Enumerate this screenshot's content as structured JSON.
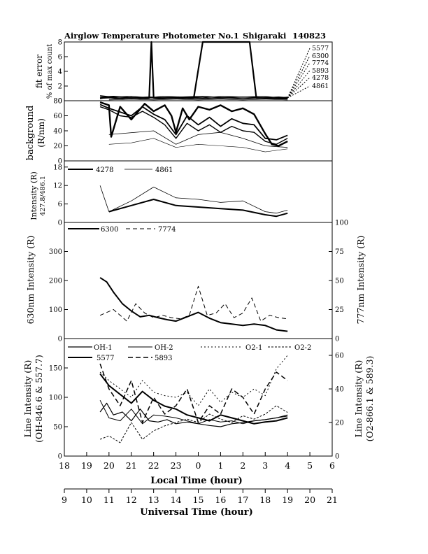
{
  "title": {
    "left": "Airglow Temperature Photometer No.1",
    "site": "Shigaraki",
    "date": "140823"
  },
  "x_axes": {
    "local": {
      "label": "Local Time (hour)",
      "ticks": [
        "18",
        "19",
        "20",
        "21",
        "22",
        "23",
        "0",
        "1",
        "2",
        "3",
        "4",
        "5",
        "6"
      ]
    },
    "universal": {
      "label": "Universal Time (hour)",
      "ticks": [
        "9",
        "10",
        "11",
        "12",
        "13",
        "14",
        "15",
        "16",
        "17",
        "18",
        "19",
        "20",
        "21"
      ]
    }
  },
  "chart_data": [
    {
      "type": "line",
      "panel": "fit_error",
      "ylabel": "fit error",
      "ylabel2": "% of max count",
      "ylim": [
        0,
        8
      ],
      "yticks": [
        "0",
        "2",
        "4",
        "6",
        "8"
      ],
      "legend": [
        "5577",
        "6300",
        "7774",
        "5893",
        "4278",
        "4861"
      ],
      "series": [
        {
          "name": "5577",
          "x": [
            19.6,
            19.9,
            20.2,
            20.6,
            21.0,
            21.4,
            21.8,
            21.9,
            22.0,
            22.4,
            22.9,
            23.3,
            23.8,
            24.2,
            24.5,
            24.8,
            25.1,
            25.4,
            25.8,
            26.3,
            26.6,
            27.0,
            27.5,
            27.9,
            28.0
          ],
          "y": [
            0.3,
            0.5,
            0.4,
            0.3,
            0.4,
            0.3,
            0.4,
            8.0,
            0.4,
            0.3,
            0.4,
            0.3,
            0.4,
            8.0,
            8.0,
            8.0,
            8.0,
            8.0,
            8.0,
            8.0,
            0.4,
            0.3,
            0.3,
            0.3,
            0.3
          ]
        },
        {
          "name": "6300",
          "x": [
            19.6,
            20.2,
            21.0,
            21.8,
            22.4,
            23.3,
            24.2,
            25.1,
            26.0,
            26.9,
            27.6,
            28.0
          ],
          "y": [
            0.5,
            0.6,
            0.4,
            0.5,
            0.4,
            0.5,
            0.6,
            0.4,
            0.5,
            0.4,
            0.5,
            0.4
          ]
        },
        {
          "name": "7774",
          "x": [
            19.6,
            20.2,
            21.0,
            21.8,
            22.4,
            23.3,
            24.2,
            25.1,
            26.0,
            26.9,
            27.6,
            28.0
          ],
          "y": [
            0.7,
            0.5,
            0.6,
            0.4,
            0.6,
            0.5,
            0.4,
            0.6,
            0.5,
            0.6,
            0.4,
            0.5
          ]
        },
        {
          "name": "5893",
          "x": [
            19.6,
            20.2,
            21.0,
            21.8,
            22.4,
            23.3,
            24.2,
            25.1,
            26.0,
            26.9,
            27.6,
            28.0
          ],
          "y": [
            0.3,
            0.4,
            0.3,
            0.4,
            0.3,
            0.4,
            0.3,
            0.4,
            0.3,
            0.4,
            0.3,
            0.3
          ]
        },
        {
          "name": "4278",
          "x": [
            20.0,
            21.0,
            22.0,
            23.0,
            24.0,
            25.0,
            26.0,
            27.0,
            28.0
          ],
          "y": [
            0.2,
            0.3,
            0.2,
            0.3,
            0.2,
            0.3,
            0.2,
            0.3,
            0.2
          ]
        },
        {
          "name": "4861",
          "x": [
            20.0,
            21.0,
            22.0,
            23.0,
            24.0,
            25.0,
            26.0,
            27.0,
            28.0
          ],
          "y": [
            0.1,
            0.2,
            0.1,
            0.2,
            0.1,
            0.2,
            0.1,
            0.2,
            0.1
          ]
        }
      ]
    },
    {
      "type": "line",
      "panel": "background",
      "ylabel": "background",
      "ylabel2": "(R/nm)",
      "ylim": [
        0,
        80
      ],
      "yticks": [
        "0",
        "20",
        "40",
        "60",
        "80"
      ],
      "series": [
        {
          "x": [
            19.6,
            20.0,
            20.1,
            20.5,
            21.0,
            21.6,
            22.0,
            22.5,
            22.8,
            23.0,
            23.3,
            23.6,
            24.0,
            24.5,
            25.0,
            25.5,
            26.0,
            26.5,
            27.0,
            27.3,
            27.6,
            28.0
          ],
          "y": [
            78,
            74,
            32,
            72,
            55,
            76,
            66,
            74,
            60,
            38,
            70,
            55,
            72,
            68,
            74,
            66,
            70,
            62,
            36,
            22,
            20,
            26
          ]
        },
        {
          "x": [
            19.6,
            20.0,
            20.5,
            21.0,
            21.5,
            22.0,
            22.5,
            23.0,
            23.5,
            24.0,
            24.5,
            25.0,
            25.5,
            26.0,
            26.5,
            27.0,
            27.5,
            28.0
          ],
          "y": [
            75,
            70,
            65,
            60,
            72,
            62,
            55,
            35,
            60,
            48,
            58,
            46,
            56,
            50,
            48,
            30,
            28,
            34
          ]
        },
        {
          "x": [
            19.6,
            20.0,
            20.5,
            21.0,
            21.5,
            22.0,
            22.5,
            23.0,
            23.5,
            24.0,
            24.5,
            25.0,
            25.5,
            26.0,
            26.5,
            27.0,
            27.5,
            28.0
          ],
          "y": [
            72,
            68,
            60,
            58,
            66,
            58,
            48,
            30,
            50,
            40,
            48,
            38,
            46,
            40,
            38,
            26,
            22,
            30
          ]
        },
        {
          "x": [
            20.0,
            22.0,
            23.0,
            24.0,
            25.0,
            26.0,
            27.0,
            28.0
          ],
          "y": [
            35,
            40,
            22,
            35,
            38,
            30,
            20,
            18
          ]
        },
        {
          "x": [
            20.0,
            21.0,
            22.0,
            23.0,
            24.0,
            25.0,
            26.0,
            27.0,
            28.0
          ],
          "y": [
            22,
            24,
            30,
            18,
            22,
            20,
            18,
            12,
            16
          ]
        }
      ]
    },
    {
      "type": "line",
      "panel": "intensity_4278_4861",
      "ylabel": "Intensity (R)",
      "ylabel2": "427.8/486.1",
      "ylim": [
        0,
        20
      ],
      "yticks": [
        "0",
        "6",
        "12",
        "18"
      ],
      "series": [
        {
          "name": "4278",
          "x": [
            20.0,
            21.0,
            22.0,
            23.0,
            24.0,
            25.0,
            26.0,
            27.0,
            27.5,
            28.0
          ],
          "y": [
            3.5,
            5.5,
            7.5,
            5.5,
            5.0,
            4.5,
            4.0,
            2.5,
            2.0,
            3.0
          ]
        },
        {
          "name": "4861",
          "x": [
            19.6,
            20.0,
            21.0,
            22.0,
            23.0,
            24.0,
            25.0,
            26.0,
            27.0,
            27.5,
            28.0
          ],
          "y": [
            12.0,
            3.5,
            7.0,
            11.5,
            8.0,
            7.5,
            6.5,
            7.0,
            3.5,
            3.0,
            4.0
          ]
        }
      ]
    },
    {
      "type": "line",
      "panel": "intensity_6300_7774",
      "ylabel": "630nm Intensity (R)",
      "ylabel2": "777nm Intensity (R)",
      "ylim": [
        0,
        400
      ],
      "y2lim": [
        0,
        100
      ],
      "yticks": [
        "0",
        "100",
        "200",
        "300"
      ],
      "y2ticks": [
        "0",
        "25",
        "50",
        "75",
        "100"
      ],
      "series": [
        {
          "name": "6300",
          "axis": "left",
          "x": [
            19.6,
            19.9,
            20.2,
            20.6,
            21.0,
            21.4,
            21.8,
            22.2,
            22.6,
            23.0,
            23.5,
            24.0,
            24.5,
            25.0,
            25.5,
            26.0,
            26.5,
            27.0,
            27.5,
            28.0
          ],
          "y": [
            210,
            195,
            160,
            120,
            95,
            75,
            80,
            72,
            65,
            60,
            75,
            90,
            70,
            55,
            50,
            45,
            50,
            45,
            30,
            25
          ]
        },
        {
          "name": "7774",
          "axis": "right",
          "x": [
            19.6,
            20.2,
            20.8,
            21.2,
            21.6,
            22.0,
            22.4,
            22.8,
            23.2,
            23.6,
            24.0,
            24.4,
            24.8,
            25.2,
            25.6,
            26.0,
            26.4,
            26.8,
            27.2,
            27.6,
            28.0
          ],
          "y": [
            20,
            25,
            15,
            30,
            22,
            18,
            20,
            18,
            17,
            20,
            45,
            20,
            22,
            30,
            18,
            22,
            35,
            15,
            20,
            18,
            17
          ]
        }
      ]
    },
    {
      "type": "line",
      "panel": "line_intensity",
      "ylabel": "Line Intensity (R)",
      "ylabel2": "(OH-846.6 & 557.7)",
      "y2label": "Line Intensity (R)",
      "y2label2": "(O2-866.1 & 589.3)",
      "ylim": [
        0,
        200
      ],
      "y2lim": [
        0,
        70
      ],
      "yticks": [
        "0",
        "50",
        "100",
        "150"
      ],
      "y2ticks": [
        "0",
        "20",
        "40",
        "60"
      ],
      "legend": [
        "OH-1",
        "OH-2",
        "O2-1",
        "O2-2",
        "5577",
        "5893"
      ],
      "series": [
        {
          "name": "OH-1",
          "x": [
            19.6,
            19.9,
            20.2,
            20.6,
            21.0,
            21.4,
            21.8,
            22.2,
            22.6,
            23.0,
            23.5,
            24.0,
            24.5,
            25.0,
            25.5,
            26.0,
            26.5,
            27.0,
            27.5,
            28.0
          ],
          "y": [
            75,
            90,
            70,
            75,
            60,
            80,
            60,
            58,
            62,
            55,
            58,
            55,
            52,
            50,
            55,
            57,
            60,
            62,
            65,
            70
          ]
        },
        {
          "name": "OH-2",
          "x": [
            19.6,
            20.0,
            20.5,
            21.0,
            21.5,
            22.0,
            22.5,
            23.0,
            23.5,
            24.0,
            24.5,
            25.0,
            25.5,
            26.0,
            26.5,
            27.0,
            27.5,
            28.0
          ],
          "y": [
            95,
            65,
            60,
            80,
            55,
            70,
            68,
            65,
            60,
            55,
            62,
            58,
            60,
            55,
            60,
            62,
            65,
            68
          ]
        },
        {
          "name": "O2-1",
          "axis": "right",
          "x": [
            19.6,
            20.0,
            20.5,
            21.0,
            21.5,
            22.0,
            22.5,
            23.0,
            23.5,
            24.0,
            24.5,
            25.0,
            25.5,
            26.0,
            26.5,
            27.0,
            27.5,
            28.0
          ],
          "y": [
            50,
            45,
            40,
            35,
            45,
            38,
            36,
            35,
            38,
            30,
            40,
            32,
            38,
            35,
            40,
            36,
            52,
            60
          ]
        },
        {
          "name": "O2-2",
          "axis": "right",
          "x": [
            19.6,
            20.0,
            20.5,
            21.0,
            21.5,
            22.0,
            22.5,
            23.0,
            23.5,
            24.0,
            24.5,
            25.0,
            25.5,
            26.0,
            26.5,
            27.0,
            27.5,
            28.0
          ],
          "y": [
            10,
            12,
            8,
            20,
            10,
            15,
            18,
            20,
            22,
            20,
            25,
            22,
            20,
            24,
            22,
            25,
            30,
            26
          ]
        },
        {
          "name": "5577",
          "x": [
            19.6,
            20.0,
            20.5,
            21.0,
            21.5,
            22.0,
            22.5,
            23.0,
            23.5,
            24.0,
            24.5,
            25.0,
            25.5,
            26.0,
            26.5,
            27.0,
            27.5,
            28.0
          ],
          "y": [
            140,
            120,
            105,
            90,
            110,
            95,
            85,
            80,
            70,
            65,
            60,
            70,
            65,
            60,
            55,
            58,
            60,
            65
          ]
        },
        {
          "name": "5893",
          "axis": "right",
          "x": [
            19.6,
            20.0,
            20.5,
            21.0,
            21.5,
            22.0,
            22.5,
            23.0,
            23.5,
            24.0,
            24.5,
            25.0,
            25.5,
            26.0,
            26.5,
            27.0,
            27.5,
            28.0
          ],
          "y": [
            55,
            40,
            30,
            45,
            20,
            35,
            25,
            30,
            40,
            20,
            30,
            25,
            40,
            35,
            25,
            40,
            50,
            45
          ]
        }
      ]
    }
  ]
}
